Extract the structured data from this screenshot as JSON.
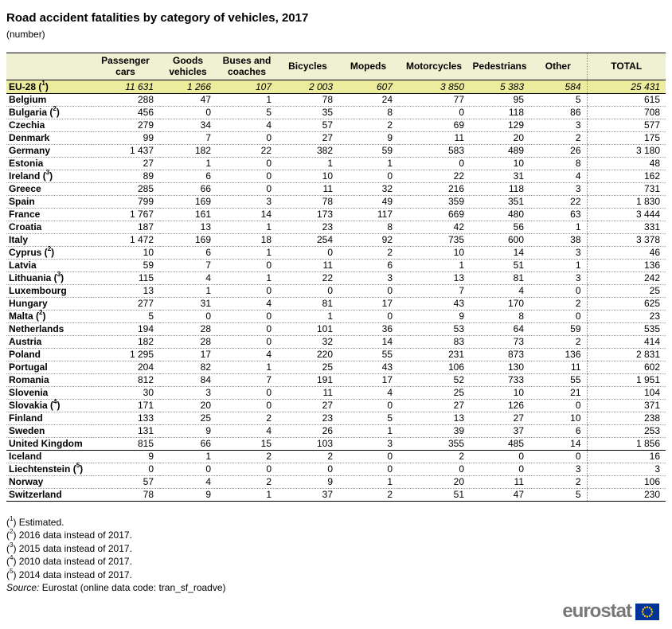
{
  "chart_data": {
    "type": "table",
    "title": "Road accident fatalities by category of vehicles, 2017",
    "unit": "(number)",
    "columns": [
      "Passenger cars",
      "Goods vehicles",
      "Buses and coaches",
      "Bicycles",
      "Mopeds",
      "Motorcycles",
      "Pedestrians",
      "Other",
      "TOTAL"
    ],
    "aggregate_row": {
      "label": "EU-28",
      "footnote": "1",
      "values": [
        11631,
        1266,
        107,
        2003,
        607,
        3850,
        5383,
        584,
        25431
      ]
    },
    "eu_rows": [
      {
        "label": "Belgium",
        "values": [
          288,
          47,
          1,
          78,
          24,
          77,
          95,
          5,
          615
        ]
      },
      {
        "label": "Bulgaria",
        "footnote": "2",
        "values": [
          456,
          0,
          5,
          35,
          8,
          0,
          118,
          86,
          708
        ]
      },
      {
        "label": "Czechia",
        "values": [
          279,
          34,
          4,
          57,
          2,
          69,
          129,
          3,
          577
        ]
      },
      {
        "label": "Denmark",
        "values": [
          99,
          7,
          0,
          27,
          9,
          11,
          20,
          2,
          175
        ]
      },
      {
        "label": "Germany",
        "values": [
          1437,
          182,
          22,
          382,
          59,
          583,
          489,
          26,
          3180
        ]
      },
      {
        "label": "Estonia",
        "values": [
          27,
          1,
          0,
          1,
          1,
          0,
          10,
          8,
          48
        ]
      },
      {
        "label": "Ireland",
        "footnote": "3",
        "values": [
          89,
          6,
          0,
          10,
          0,
          22,
          31,
          4,
          162
        ]
      },
      {
        "label": "Greece",
        "values": [
          285,
          66,
          0,
          11,
          32,
          216,
          118,
          3,
          731
        ]
      },
      {
        "label": "Spain",
        "values": [
          799,
          169,
          3,
          78,
          49,
          359,
          351,
          22,
          1830
        ]
      },
      {
        "label": "France",
        "values": [
          1767,
          161,
          14,
          173,
          117,
          669,
          480,
          63,
          3444
        ]
      },
      {
        "label": "Croatia",
        "values": [
          187,
          13,
          1,
          23,
          8,
          42,
          56,
          1,
          331
        ]
      },
      {
        "label": "Italy",
        "values": [
          1472,
          169,
          18,
          254,
          92,
          735,
          600,
          38,
          3378
        ]
      },
      {
        "label": "Cyprus",
        "footnote": "2",
        "values": [
          10,
          6,
          1,
          0,
          2,
          10,
          14,
          3,
          46
        ]
      },
      {
        "label": "Latvia",
        "values": [
          59,
          7,
          0,
          11,
          6,
          1,
          51,
          1,
          136
        ]
      },
      {
        "label": "Lithuania",
        "footnote": "3",
        "values": [
          115,
          4,
          1,
          22,
          3,
          13,
          81,
          3,
          242
        ]
      },
      {
        "label": "Luxembourg",
        "values": [
          13,
          1,
          0,
          0,
          0,
          7,
          4,
          0,
          25
        ]
      },
      {
        "label": "Hungary",
        "values": [
          277,
          31,
          4,
          81,
          17,
          43,
          170,
          2,
          625
        ]
      },
      {
        "label": "Malta",
        "footnote": "2",
        "values": [
          5,
          0,
          0,
          1,
          0,
          9,
          8,
          0,
          23
        ]
      },
      {
        "label": "Netherlands",
        "values": [
          194,
          28,
          0,
          101,
          36,
          53,
          64,
          59,
          535
        ]
      },
      {
        "label": "Austria",
        "values": [
          182,
          28,
          0,
          32,
          14,
          83,
          73,
          2,
          414
        ]
      },
      {
        "label": "Poland",
        "values": [
          1295,
          17,
          4,
          220,
          55,
          231,
          873,
          136,
          2831
        ]
      },
      {
        "label": "Portugal",
        "values": [
          204,
          82,
          1,
          25,
          43,
          106,
          130,
          11,
          602
        ]
      },
      {
        "label": "Romania",
        "values": [
          812,
          84,
          7,
          191,
          17,
          52,
          733,
          55,
          1951
        ]
      },
      {
        "label": "Slovenia",
        "values": [
          30,
          3,
          0,
          11,
          4,
          25,
          10,
          21,
          104
        ]
      },
      {
        "label": "Slovakia",
        "footnote": "4",
        "values": [
          171,
          20,
          0,
          27,
          0,
          27,
          126,
          0,
          371
        ]
      },
      {
        "label": "Finland",
        "values": [
          133,
          25,
          2,
          23,
          5,
          13,
          27,
          10,
          238
        ]
      },
      {
        "label": "Sweden",
        "values": [
          131,
          9,
          4,
          26,
          1,
          39,
          37,
          6,
          253
        ]
      },
      {
        "label": "United Kingdom",
        "values": [
          815,
          66,
          15,
          103,
          3,
          355,
          485,
          14,
          1856
        ]
      }
    ],
    "efta_rows": [
      {
        "label": "Iceland",
        "values": [
          9,
          1,
          2,
          2,
          0,
          2,
          0,
          0,
          16
        ]
      },
      {
        "label": "Liechtenstein",
        "footnote": "5",
        "values": [
          0,
          0,
          0,
          0,
          0,
          0,
          0,
          3,
          3
        ]
      },
      {
        "label": "Norway",
        "values": [
          57,
          4,
          2,
          9,
          1,
          20,
          11,
          2,
          106
        ]
      },
      {
        "label": "Switzerland",
        "values": [
          78,
          9,
          1,
          37,
          2,
          51,
          47,
          5,
          230
        ]
      }
    ]
  },
  "footnotes": [
    {
      "marker": "1",
      "text": "Estimated."
    },
    {
      "marker": "2",
      "text": "2016 data instead of 2017."
    },
    {
      "marker": "3",
      "text": "2015 data instead of 2017."
    },
    {
      "marker": "4",
      "text": "2010 data instead of 2017."
    },
    {
      "marker": "5",
      "text": "2014 data instead of 2017."
    }
  ],
  "source": {
    "label": "Source:",
    "text": "Eurostat (online data code: tran_sf_roadve)"
  },
  "logo": {
    "text": "eurostat"
  },
  "colors": {
    "header_bg": "#F0F0D2",
    "aggregate_bg": "#ECEC9D",
    "logo_gray": "#787878",
    "flag_blue": "#003399",
    "star_yellow": "#FFCC00"
  }
}
